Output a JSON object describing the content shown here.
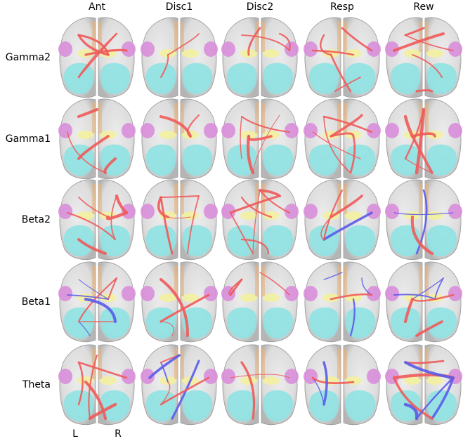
{
  "columns": [
    "Ant",
    "Disc1",
    "Disc2",
    "Resp",
    "Rew"
  ],
  "rows": [
    "Gamma2",
    "Gamma1",
    "Beta2",
    "Beta1",
    "Theta"
  ],
  "hemispheres": [
    "L",
    "R"
  ]
}
